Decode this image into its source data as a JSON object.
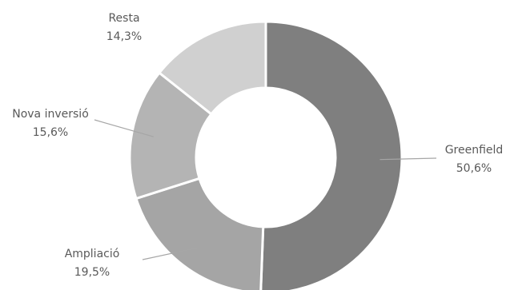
{
  "chart_data": {
    "type": "pie",
    "variant": "donut",
    "title": "",
    "slices": [
      {
        "label": "Greenfield",
        "value": 50.6,
        "value_label": "50,6%",
        "color": "#7f7f7f"
      },
      {
        "label": "Ampliació",
        "value": 19.5,
        "value_label": "19,5%",
        "color": "#a5a5a5"
      },
      {
        "label": "Nova inversió",
        "value": 15.6,
        "value_label": "15,6%",
        "color": "#b4b4b4"
      },
      {
        "label": "Resta",
        "value": 14.3,
        "value_label": "14,3%",
        "color": "#d0d0d0"
      }
    ],
    "legend": "none",
    "leader_line_color": "#a6a6a6",
    "label_color": "#595959"
  }
}
